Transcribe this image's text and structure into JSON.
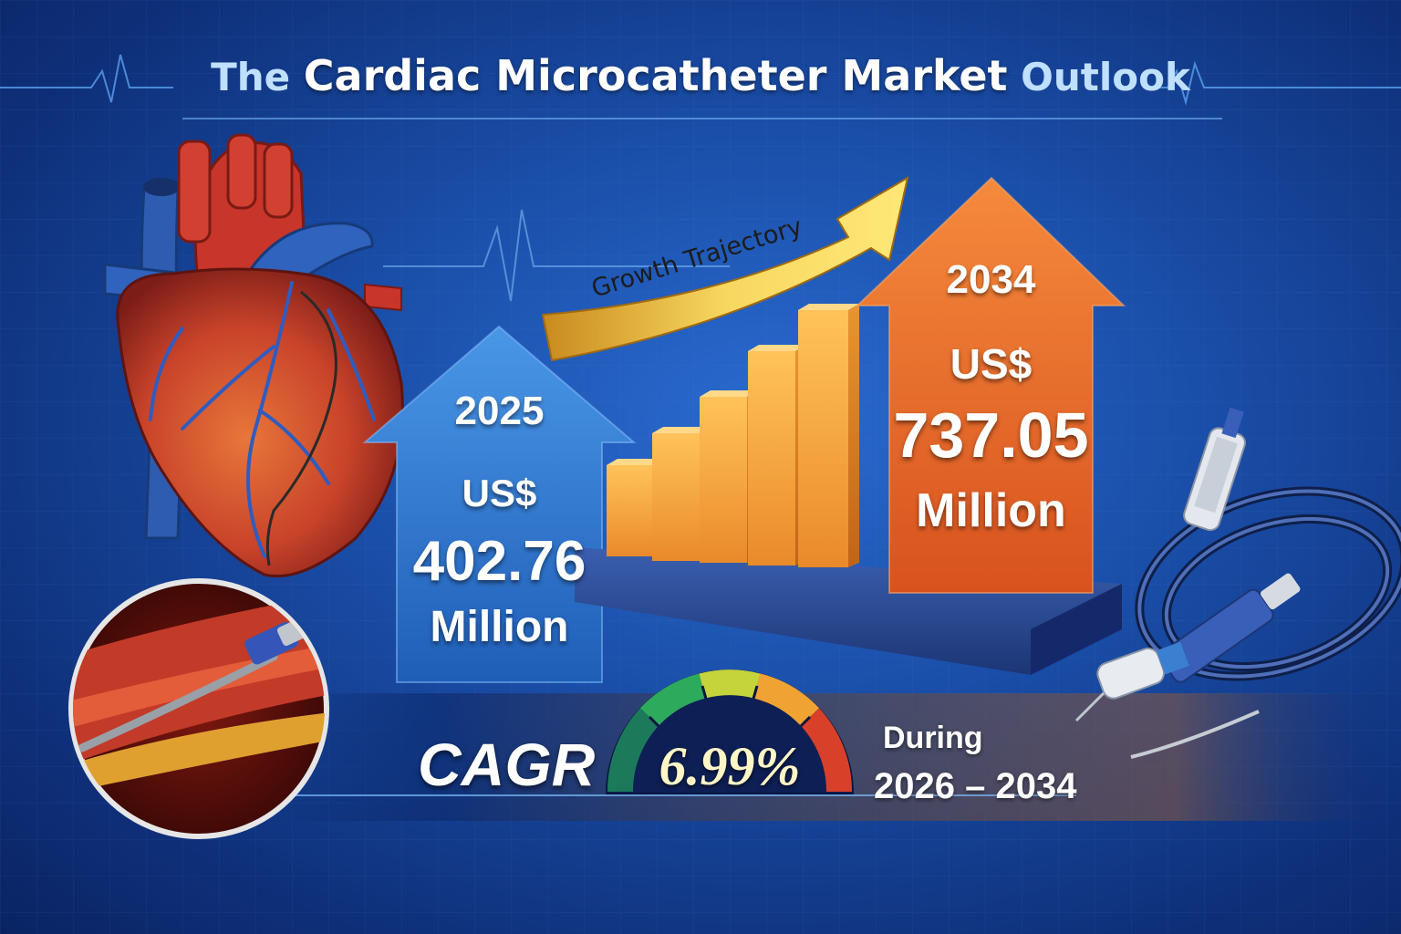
{
  "title": {
    "part1": "The ",
    "part2": "Cardiac Microcatheter Market",
    "part3": " Outlook"
  },
  "growth_label": "Growth Trajectory",
  "start": {
    "year": "2025",
    "currency": "US$",
    "value": "402.76",
    "unit": "Million"
  },
  "end": {
    "year": "2034",
    "currency": "US$",
    "value": "737.05",
    "unit": "Million"
  },
  "cagr": {
    "label": "CAGR",
    "value": "6.99%",
    "period_label": "During",
    "period": "2026 – 2034"
  },
  "colors": {
    "start_arrow": "#2f74cc",
    "end_arrow": "#e8662a",
    "bars": "#f6a640",
    "background": "#1a4ea8"
  },
  "icons": [
    "heart-illustration-icon",
    "catheter-in-artery-icon",
    "microcatheter-device-icon",
    "heartbeat-line-icon",
    "gauge-icon"
  ]
}
